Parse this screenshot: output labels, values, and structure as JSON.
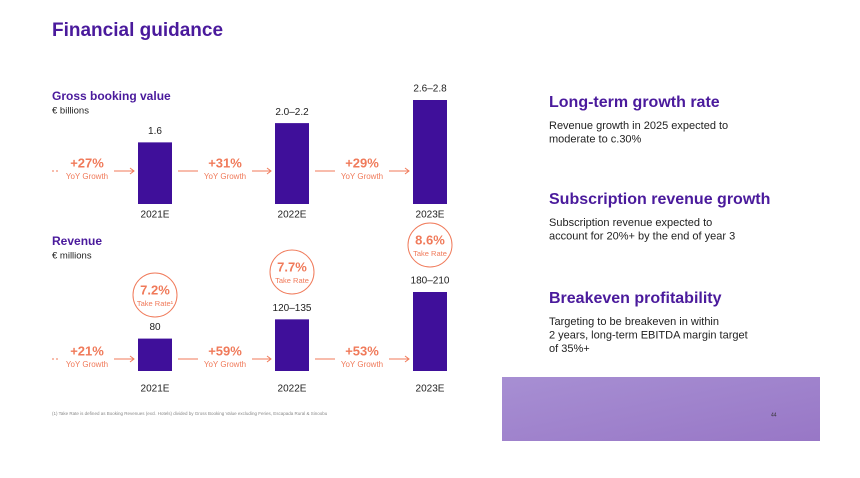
{
  "title": "Financial guidance",
  "chart_data": [
    {
      "type": "bar",
      "title": "Gross booking value",
      "subtitle": "€ billions",
      "categories": [
        "2021E",
        "2022E",
        "2023E"
      ],
      "values": [
        1.6,
        2.1,
        2.7
      ],
      "value_labels": [
        "1.6",
        "2.0–2.2",
        "2.6–2.8"
      ],
      "color": "#3f0f9a",
      "growth_labels": [
        "+27%",
        "+31%",
        "+29%"
      ],
      "growth_note": "YoY Growth"
    },
    {
      "type": "bar",
      "title": "Revenue",
      "subtitle": "€ millions",
      "categories": [
        "2021E",
        "2022E",
        "2023E"
      ],
      "values": [
        80,
        127.5,
        195
      ],
      "value_labels": [
        "80",
        "120–135",
        "180–210"
      ],
      "color": "#3f0f9a",
      "growth_labels": [
        "+21%",
        "+59%",
        "+53%"
      ],
      "growth_note": "YoY Growth",
      "take_rates": [
        "7.2%",
        "7.7%",
        "8.6%"
      ],
      "take_rate_notes": [
        "Take Rate¹",
        "Take Rate",
        "Take Rate"
      ]
    }
  ],
  "highlights": [
    {
      "heading": "Long-term growth rate",
      "lines": [
        "Revenue growth in 2025 expected to",
        "moderate to c.30%"
      ]
    },
    {
      "heading": "Subscription revenue growth",
      "lines": [
        "Subscription revenue expected to",
        "account for 20%+ by the end of year 3"
      ]
    },
    {
      "heading": "Breakeven profitability",
      "lines": [
        "Targeting to be breakeven in within",
        "2 years, long-term EBITDA margin target",
        "of 35%+"
      ]
    }
  ],
  "footnote": "(1)   Take Rate is defined as Booking Revenues (excl. Hotels) divided by Gross Booking Value excluding Feries, Escapada Rural & Sinoobu",
  "page_number": "44"
}
